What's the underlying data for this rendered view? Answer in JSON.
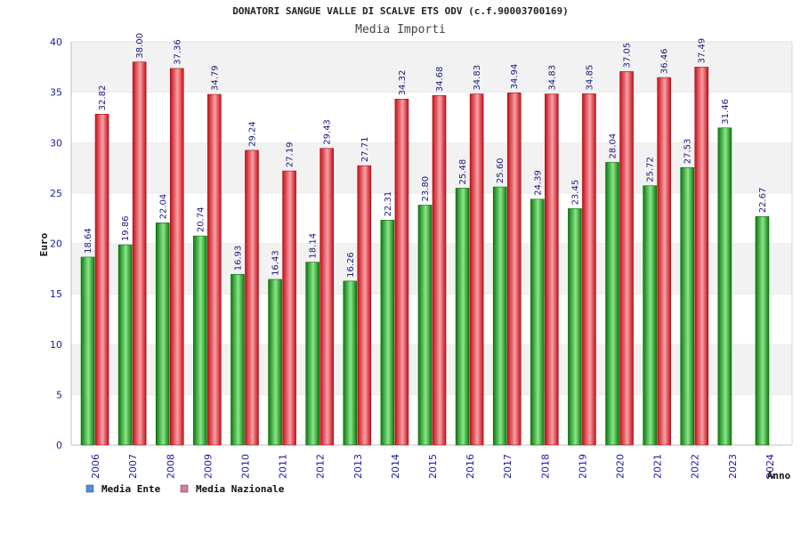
{
  "chart_data": {
    "type": "bar",
    "title": "DONATORI SANGUE VALLE DI SCALVE ETS ODV (c.f.90003700169)",
    "subtitle": "Media Importi",
    "xlabel": "Anno",
    "ylabel": "Euro",
    "ylim": [
      0,
      40
    ],
    "yticks": [
      "0",
      "5",
      "10",
      "15",
      "20",
      "25",
      "30",
      "35",
      "40"
    ],
    "categories": [
      "2006",
      "2007",
      "2008",
      "2009",
      "2010",
      "2011",
      "2012",
      "2013",
      "2014",
      "2015",
      "2016",
      "2017",
      "2018",
      "2019",
      "2020",
      "2021",
      "2022",
      "2023",
      "2024"
    ],
    "series": [
      {
        "name": "Media Ente",
        "color": "#1aa51a",
        "legend_color": "#4a90e2",
        "values": [
          18.64,
          19.86,
          22.04,
          20.74,
          16.93,
          16.43,
          18.14,
          16.26,
          22.31,
          23.8,
          25.48,
          25.6,
          24.39,
          23.45,
          28.04,
          25.72,
          27.53,
          31.46,
          22.67
        ],
        "labels": [
          "18.64",
          "19.86",
          "22.04",
          "20.74",
          "16.93",
          "16.43",
          "18.14",
          "16.26",
          "22.31",
          "23.80",
          "25.48",
          "25.60",
          "24.39",
          "23.45",
          "28.04",
          "25.72",
          "27.53",
          "31.46",
          "22.67"
        ]
      },
      {
        "name": "Media Nazionale",
        "color": "#e8212c",
        "legend_color": "#d97aa0",
        "values": [
          32.82,
          38.0,
          37.36,
          34.79,
          29.24,
          27.19,
          29.43,
          27.71,
          34.32,
          34.68,
          34.83,
          34.94,
          34.83,
          34.85,
          37.05,
          36.46,
          37.49,
          null,
          null
        ],
        "labels": [
          "32.82",
          "38.00",
          "37.36",
          "34.79",
          "29.24",
          "27.19",
          "29.43",
          "27.71",
          "34.32",
          "34.68",
          "34.83",
          "34.94",
          "34.83",
          "34.85",
          "37.05",
          "36.46",
          "37.49",
          "",
          ""
        ]
      }
    ],
    "grid": "horizontal bands",
    "legend_position": "bottom-left"
  }
}
